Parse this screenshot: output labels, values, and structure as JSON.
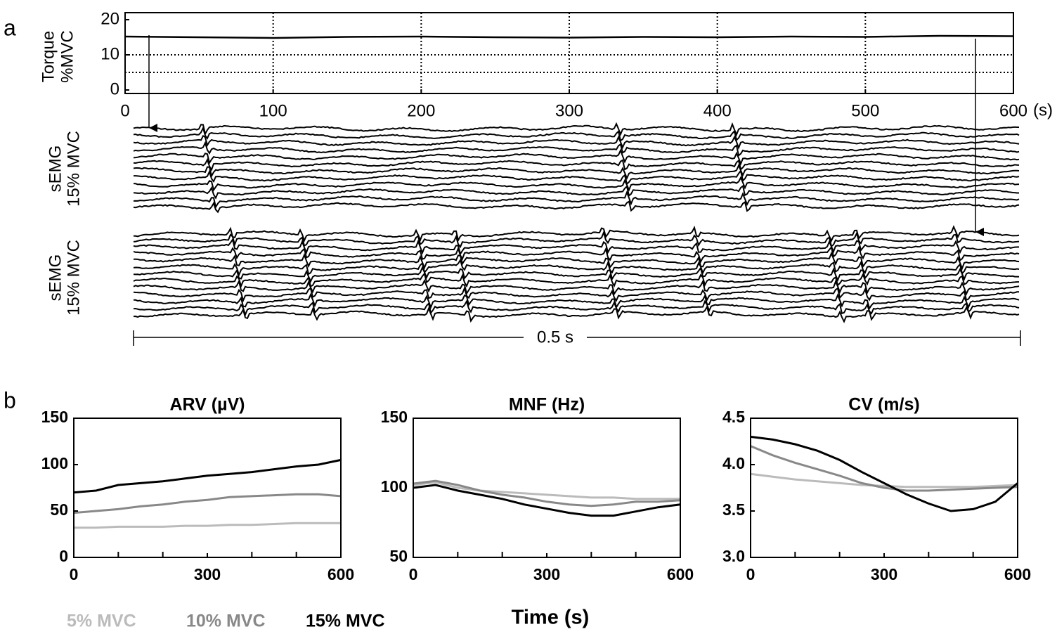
{
  "panels": [
    "a",
    "b"
  ],
  "emg": {
    "labels": [
      [
        "sEMG",
        "15% MVC"
      ],
      [
        "sEMG",
        "15% MVC"
      ]
    ],
    "scale_label": "0.5 s"
  },
  "chart_data": [
    {
      "type": "line",
      "ylabel": [
        "Torque",
        "%MVC"
      ],
      "x_unit": "(s)",
      "x": [
        0,
        50,
        100,
        150,
        200,
        250,
        300,
        350,
        400,
        450,
        500,
        550,
        600
      ],
      "series": [
        {
          "color": "#000000",
          "values": [
            15.2,
            15.0,
            14.8,
            15.1,
            15.2,
            15.0,
            14.9,
            15.1,
            15.0,
            15.2,
            15.1,
            15.4,
            15.3
          ]
        }
      ],
      "xlim": [
        0,
        600
      ],
      "ylim": [
        -1,
        22
      ],
      "xticks": [
        0,
        100,
        200,
        300,
        400,
        500,
        600
      ],
      "yticks": [
        0,
        10,
        20
      ],
      "grid": true,
      "ygrid": [
        5,
        10
      ]
    },
    {
      "type": "line",
      "title": "ARV (µV)",
      "x": [
        0,
        50,
        100,
        150,
        200,
        250,
        300,
        350,
        400,
        450,
        500,
        550,
        600
      ],
      "series": [
        {
          "name": "5% MVC",
          "color": "#bbbbbb",
          "values": [
            32,
            32,
            33,
            33,
            33,
            34,
            34,
            35,
            35,
            36,
            37,
            37,
            37
          ]
        },
        {
          "name": "10% MVC",
          "color": "#888888",
          "values": [
            48,
            50,
            52,
            55,
            57,
            60,
            62,
            65,
            66,
            67,
            68,
            68,
            66
          ]
        },
        {
          "name": "15% MVC",
          "color": "#000000",
          "values": [
            70,
            72,
            78,
            80,
            82,
            85,
            88,
            90,
            92,
            95,
            98,
            100,
            105
          ]
        }
      ],
      "xlim": [
        0,
        600
      ],
      "ylim": [
        0,
        150
      ],
      "xticks": [
        0,
        300,
        600
      ],
      "xminor": [
        100,
        200,
        400,
        500
      ],
      "yticks": [
        0,
        50,
        100,
        150
      ]
    },
    {
      "type": "line",
      "title": "MNF (Hz)",
      "xlabel": "Time (s)",
      "x": [
        0,
        50,
        100,
        150,
        200,
        250,
        300,
        350,
        400,
        450,
        500,
        550,
        600
      ],
      "series": [
        {
          "color": "#bbbbbb",
          "values": [
            102,
            104,
            100,
            98,
            97,
            96,
            95,
            94,
            93,
            93,
            92,
            92,
            92
          ]
        },
        {
          "color": "#888888",
          "values": [
            103,
            105,
            102,
            98,
            95,
            93,
            90,
            88,
            87,
            88,
            90,
            90,
            91
          ]
        },
        {
          "color": "#000000",
          "values": [
            100,
            102,
            98,
            95,
            92,
            88,
            85,
            82,
            80,
            80,
            83,
            86,
            88
          ]
        }
      ],
      "xlim": [
        0,
        600
      ],
      "ylim": [
        50,
        150
      ],
      "xticks": [
        0,
        300,
        600
      ],
      "xminor": [
        100,
        200,
        400,
        500
      ],
      "yticks": [
        50,
        100,
        150
      ]
    },
    {
      "type": "line",
      "title": "CV (m/s)",
      "x": [
        0,
        50,
        100,
        150,
        200,
        250,
        300,
        350,
        400,
        450,
        500,
        550,
        600
      ],
      "series": [
        {
          "color": "#bbbbbb",
          "values": [
            3.9,
            3.87,
            3.84,
            3.82,
            3.8,
            3.78,
            3.77,
            3.76,
            3.76,
            3.76,
            3.76,
            3.77,
            3.78
          ]
        },
        {
          "color": "#888888",
          "values": [
            4.2,
            4.1,
            4.02,
            3.95,
            3.88,
            3.8,
            3.75,
            3.72,
            3.72,
            3.73,
            3.74,
            3.75,
            3.76
          ]
        },
        {
          "color": "#000000",
          "values": [
            4.3,
            4.27,
            4.22,
            4.15,
            4.05,
            3.92,
            3.8,
            3.68,
            3.58,
            3.5,
            3.52,
            3.6,
            3.8
          ]
        }
      ],
      "xlim": [
        0,
        600
      ],
      "ylim": [
        3.0,
        4.5
      ],
      "xticks": [
        0,
        300,
        600
      ],
      "xminor": [
        100,
        200,
        400,
        500
      ],
      "yticks": [
        {
          "value": 3.0,
          "label": "3.0"
        },
        {
          "value": 3.5,
          "label": "3.5"
        },
        {
          "value": 4.0,
          "label": "4.0"
        },
        4.5
      ]
    }
  ]
}
